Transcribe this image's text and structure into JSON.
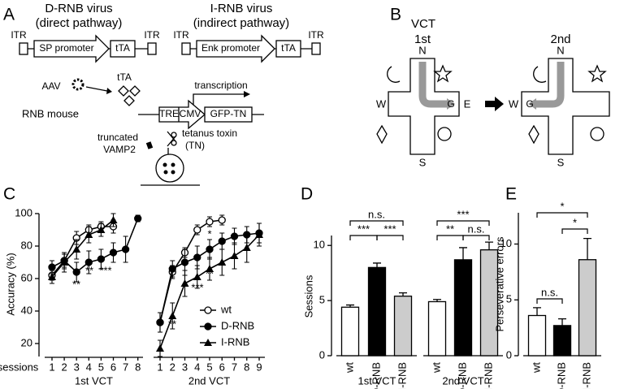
{
  "figure": {
    "a": {
      "label": "A",
      "d_virus": "D-RNB virus",
      "d_pathway": "(direct pathway)",
      "i_virus": "I-RNB virus",
      "i_pathway": "(indirect pathway)",
      "itr": [
        "ITR",
        "ITR",
        "ITR",
        "ITR"
      ],
      "sp_promoter": "SP promoter",
      "enk_promoter": "Enk promoter",
      "tta": [
        "tTA",
        "tTA",
        "tTA"
      ],
      "aav": "AAV",
      "transcription": "transcription",
      "rnb_mouse": "RNB mouse",
      "tre": "TRE",
      "cmv": "CMV",
      "gfp_tn": "GFP-TN",
      "truncated": "truncated",
      "vamp2": "VAMP2",
      "tetanus_toxin": "tetanus toxin",
      "tn": "(TN)"
    },
    "b": {
      "label": "B",
      "vct": "VCT",
      "mazes": [
        {
          "title": "1st",
          "n": "N",
          "s": "S",
          "w": "W",
          "e": "E",
          "goal": "G"
        },
        {
          "title": "2nd",
          "n": "N",
          "s": "S",
          "w": "W",
          "goal": "G"
        }
      ]
    }
  },
  "chart_data": [
    {
      "type": "line",
      "label": "C",
      "ylabel": "Accuracy (%)",
      "xlabel": "sessions",
      "ylim": [
        12,
        100
      ],
      "yticks": [
        20,
        40,
        60,
        80,
        100
      ],
      "groups": [
        {
          "name": "1st VCT",
          "categories": [
            1,
            2,
            3,
            4,
            5,
            6,
            7,
            8
          ]
        },
        {
          "name": "2nd VCT",
          "categories": [
            1,
            2,
            3,
            4,
            5,
            6,
            7,
            8,
            9
          ]
        }
      ],
      "series": [
        {
          "name": "wt",
          "marker": "open-circle",
          "color": "#000000",
          "values": [
            [
              62,
              71,
              85,
              90,
              92,
              92,
              null,
              null
            ],
            [
              33,
              64,
              76,
              90,
              95,
              96,
              null,
              null,
              null
            ]
          ],
          "errors": [
            [
              3,
              4,
              4,
              3,
              3,
              4,
              null,
              null
            ],
            [
              6,
              4,
              3,
              3,
              3,
              3,
              null,
              null,
              null
            ]
          ]
        },
        {
          "name": "D-RNB",
          "marker": "circle",
          "color": "#000000",
          "values": [
            [
              67,
              71,
              64,
              70,
              72,
              76,
              78,
              97
            ],
            [
              33,
              66,
              70,
              73,
              78,
              83,
              86,
              87,
              88
            ]
          ],
          "errors": [
            [
              4,
              5,
              6,
              7,
              6,
              6,
              8,
              2
            ],
            [
              6,
              5,
              8,
              7,
              6,
              5,
              5,
              5,
              6
            ]
          ]
        },
        {
          "name": "I-RNB",
          "marker": "triangle",
          "color": "#000000",
          "values": [
            [
              61,
              70,
              78,
              87,
              90,
              96,
              null,
              null
            ],
            [
              17,
              37,
              57,
              61,
              66,
              70,
              74,
              79,
              87
            ]
          ],
          "errors": [
            [
              4,
              6,
              6,
              5,
              4,
              4,
              null,
              null
            ],
            [
              5,
              8,
              8,
              7,
              7,
              8,
              8,
              9,
              7
            ]
          ]
        }
      ],
      "annotations": [
        "**",
        "**",
        "***",
        "*",
        "***",
        "**",
        "**"
      ]
    },
    {
      "type": "bar",
      "label": "D",
      "ylabel": "Sessions",
      "ylim": [
        0,
        10.9
      ],
      "yticks": [
        0,
        5,
        10
      ],
      "colors": [
        "#ffffff",
        "#000000",
        "#cccccc"
      ],
      "groups": [
        {
          "name": "1st VCT",
          "categories": [
            "wt",
            "D-RNB",
            "I-RNB"
          ],
          "values": [
            4.4,
            8.0,
            5.4
          ],
          "errors": [
            0.2,
            0.4,
            0.3
          ]
        },
        {
          "name": "2nd VCT",
          "categories": [
            "wt",
            "D-RNB",
            "I-RNB"
          ],
          "values": [
            4.9,
            8.7,
            9.6
          ],
          "errors": [
            0.2,
            1.1,
            0.7
          ]
        }
      ],
      "annotations": [
        "n.s.",
        "***",
        "***",
        "***",
        "**",
        "n.s."
      ]
    },
    {
      "type": "bar",
      "label": "E",
      "ylabel": "Perseverative errors",
      "ylim": [
        0,
        12.8
      ],
      "yticks": [
        0,
        5,
        10
      ],
      "colors": [
        "#ffffff",
        "#000000",
        "#cccccc"
      ],
      "groups": [
        {
          "categories": [
            "wt",
            "D-RNB",
            "I-RNB"
          ],
          "values": [
            3.6,
            2.7,
            8.6
          ],
          "errors": [
            0.7,
            0.6,
            1.9
          ]
        }
      ],
      "annotations": [
        "*",
        "*",
        "n.s."
      ]
    }
  ]
}
